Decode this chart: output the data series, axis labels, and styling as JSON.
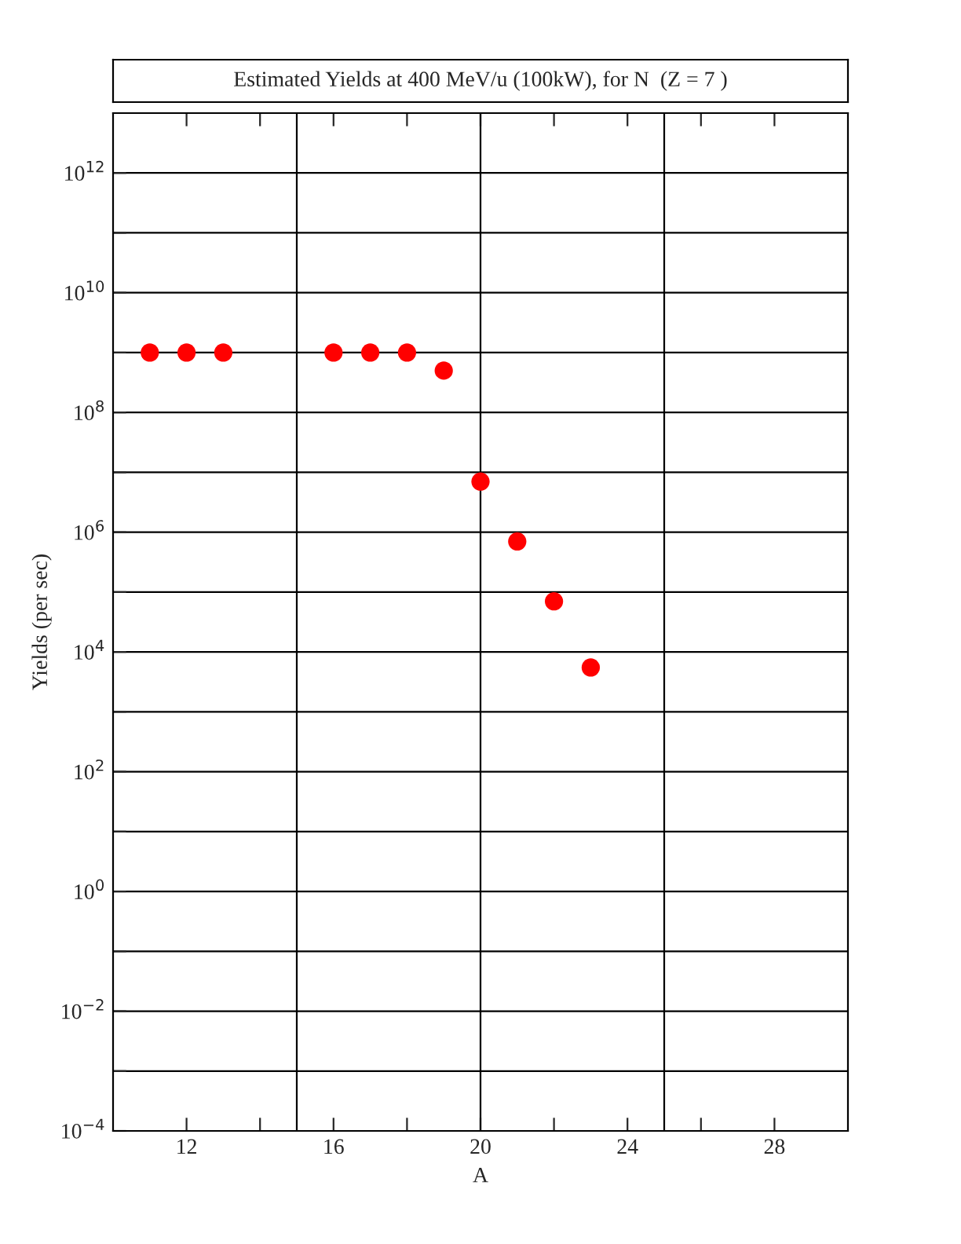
{
  "chart_data": {
    "type": "scatter",
    "title": "Estimated Yields at 400 MeV/u (100kW), for N  (Z = 7 )",
    "xlabel": "A",
    "ylabel": "Yields (per sec)",
    "x": [
      11,
      12,
      13,
      16,
      17,
      18,
      19,
      20,
      21,
      22,
      23
    ],
    "series": [
      {
        "color": "#ff0000",
        "values": [
          1000000000.0,
          1000000000.0,
          1000000000.0,
          1000000000.0,
          1000000000.0,
          1000000000.0,
          500000000.0,
          7000000.0,
          700000.0,
          70000.0,
          5500.0
        ]
      }
    ],
    "marker": "circle",
    "log": "y",
    "grid": "y",
    "xlim": [
      10,
      30
    ],
    "xticks": [
      12,
      {
        "value": 14,
        "label": null
      },
      16,
      {
        "value": 18,
        "label": null
      },
      20,
      {
        "value": 22,
        "label": null
      },
      24,
      {
        "value": 26,
        "label": null
      },
      28
    ],
    "ylim": [
      0.0001,
      10000000000000.0
    ],
    "yticks": [
      {
        "value": 0.0001,
        "label": "10$^{−4}$"
      },
      {
        "value": 0.001,
        "label": null
      },
      {
        "value": 0.01,
        "label": "10$^{−2}$"
      },
      {
        "value": 0.1,
        "label": null
      },
      {
        "value": 1,
        "label": "10$^{0}$"
      },
      {
        "value": 10,
        "label": null
      },
      {
        "value": 100,
        "label": "10$^{2}$"
      },
      {
        "value": 1000,
        "label": null
      },
      {
        "value": 10000.0,
        "label": "10$^{4}$"
      },
      {
        "value": 100000.0,
        "label": null
      },
      {
        "value": 1000000.0,
        "label": "10$^{6}$"
      },
      {
        "value": 10000000.0,
        "label": null
      },
      {
        "value": 100000000.0,
        "label": "10$^{8}$"
      },
      {
        "value": 1000000000.0,
        "label": null
      },
      {
        "value": 10000000000.0,
        "label": "10$^{10}$"
      },
      {
        "value": 100000000000.0,
        "label": null
      },
      {
        "value": 1000000000000.0,
        "label": "10$^{12}$"
      }
    ],
    "ref_lines": [
      {
        "axis": "x",
        "value": 15,
        "color": "#000000"
      },
      {
        "axis": "x",
        "value": 20,
        "color": "#000000"
      },
      {
        "axis": "x",
        "value": 25,
        "color": "#000000"
      }
    ]
  }
}
